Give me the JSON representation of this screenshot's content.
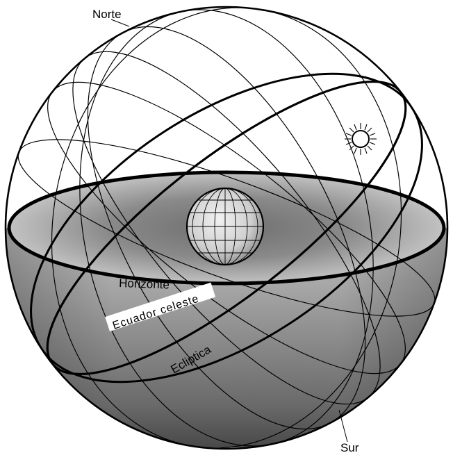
{
  "labels": {
    "north": "Norte",
    "south": "Sur",
    "horizon": "Horizonte",
    "equator": "Ecuador celeste",
    "ecliptic": "Ecliptica"
  },
  "icons": {
    "sun": "sun-icon",
    "earth": "earth-globe-icon"
  },
  "colors": {
    "background": "#ffffff",
    "line": "#000000",
    "lower_hemisphere_light": "#b8b8b8",
    "lower_hemisphere_dark": "#3a3a3a",
    "horizon_plane": "#9c9c9c",
    "earth": "#d8d8d8"
  }
}
